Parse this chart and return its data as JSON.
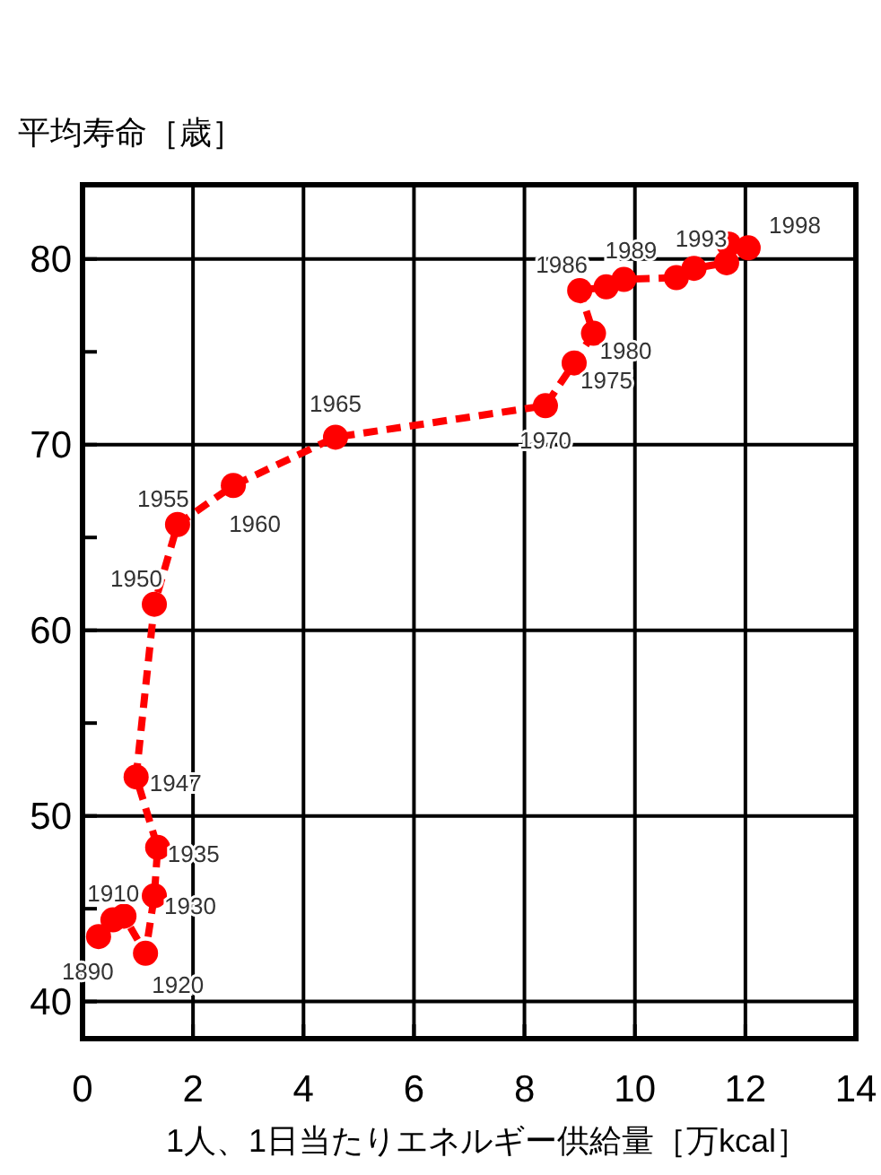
{
  "chart_data": {
    "type": "line",
    "xlabel": "1人、1日当たりエネルギー供給量［万kcal］",
    "ylabel": "平均寿命［歳］",
    "x": [
      0.29,
      0.55,
      0.75,
      1.14,
      1.3,
      1.36,
      0.97,
      1.3,
      1.72,
      2.73,
      4.58,
      8.38,
      8.9,
      9.25,
      9.0,
      9.48,
      9.8,
      10.75,
      11.07,
      11.66,
      11.7,
      12.05
    ],
    "series": [
      {
        "color": "#ff0000",
        "values": [
          43.5,
          44.4,
          44.6,
          42.6,
          45.7,
          48.3,
          52.1,
          61.4,
          65.7,
          67.8,
          70.4,
          72.1,
          74.4,
          76.0,
          78.3,
          78.5,
          78.9,
          79.0,
          79.5,
          79.8,
          80.8,
          80.6
        ]
      }
    ],
    "marker": "circle",
    "line_style": "dashed",
    "grid": true,
    "xlim": [
      0,
      14
    ],
    "ylim": [
      38,
      84
    ],
    "xticks": [
      0,
      2,
      4,
      6,
      8,
      10,
      12,
      14
    ],
    "yticks": [
      40,
      {
        "value": 45,
        "label": null
      },
      50,
      {
        "value": 55,
        "label": null
      },
      60,
      {
        "value": 65,
        "label": null
      },
      70,
      {
        "value": 75,
        "label": null
      },
      80
    ],
    "annotations": [
      {
        "text": "1890",
        "x": 0.29,
        "y": 43.5
      },
      {
        "text": "1910",
        "x": 0.75,
        "y": 44.6
      },
      {
        "text": "1920",
        "x": 1.14,
        "y": 42.6
      },
      {
        "text": "1930",
        "x": 1.3,
        "y": 45.7
      },
      {
        "text": "1935",
        "x": 1.36,
        "y": 48.3
      },
      {
        "text": "1947",
        "x": 0.97,
        "y": 52.1
      },
      {
        "text": "1950",
        "x": 1.3,
        "y": 61.4
      },
      {
        "text": "1955",
        "x": 1.72,
        "y": 65.7
      },
      {
        "text": "1960",
        "x": 2.73,
        "y": 67.8
      },
      {
        "text": "1965",
        "x": 4.58,
        "y": 70.4
      },
      {
        "text": "1970",
        "x": 8.38,
        "y": 72.1
      },
      {
        "text": "1975",
        "x": 8.9,
        "y": 74.4
      },
      {
        "text": "1980",
        "x": 9.25,
        "y": 76.0
      },
      {
        "text": "1986",
        "x": 9.0,
        "y": 78.3
      },
      {
        "text": "1989",
        "x": 9.8,
        "y": 78.9
      },
      {
        "text": "1993",
        "x": 11.07,
        "y": 79.5
      },
      {
        "text": "1998",
        "x": 12.05,
        "y": 80.6
      }
    ]
  }
}
